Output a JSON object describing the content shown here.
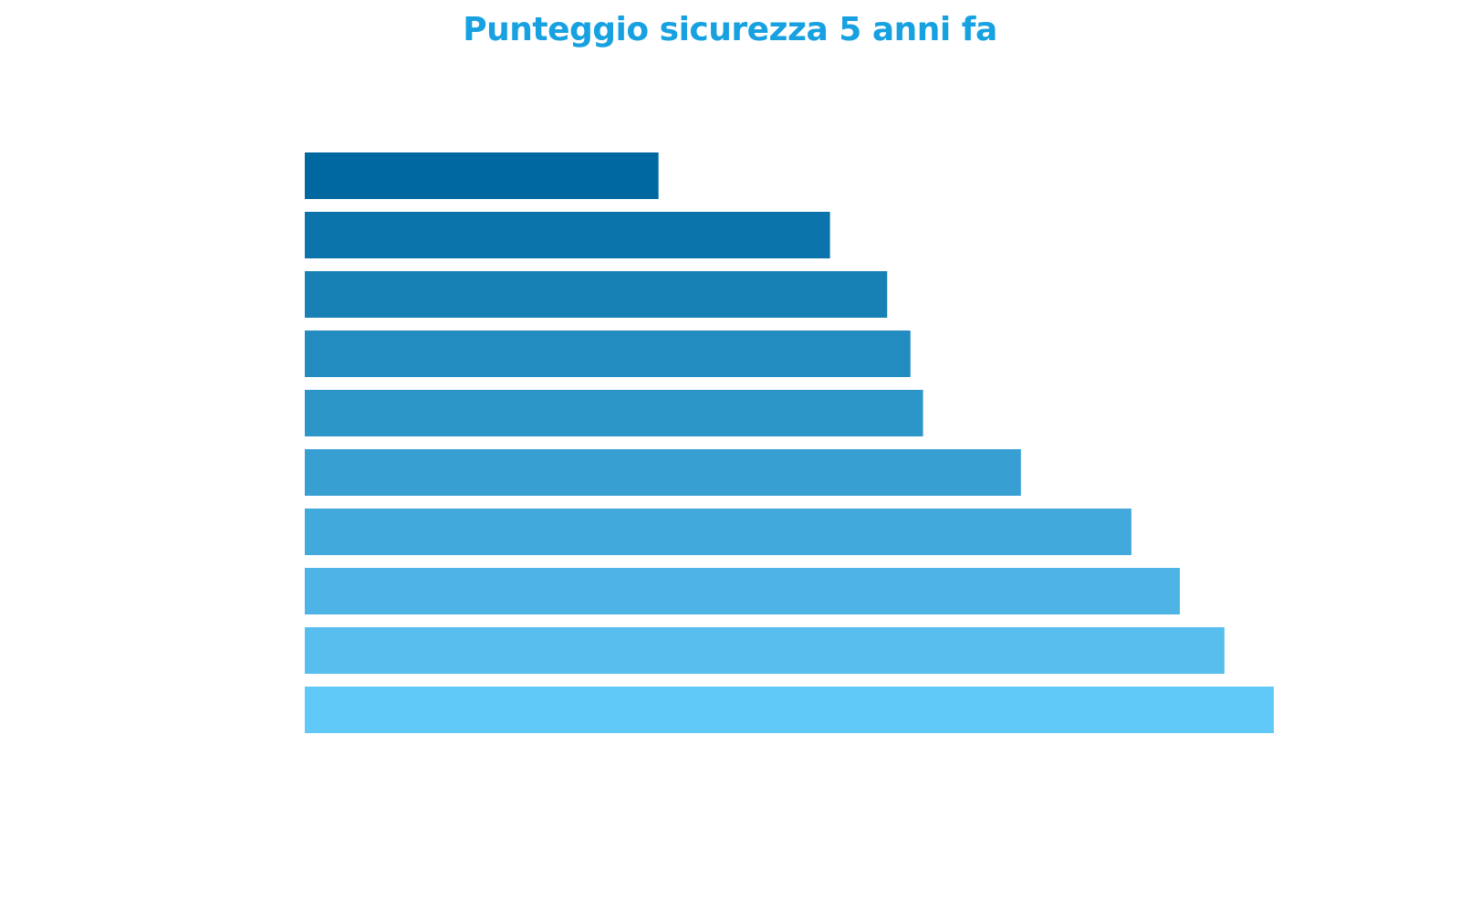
{
  "chart_data": {
    "type": "bar",
    "orientation": "horizontal",
    "title": "Punteggio sicurezza 5 anni fa",
    "xlabel": "",
    "ylabel": "",
    "values": [
      36.5,
      54.2,
      60.1,
      62.5,
      63.8,
      73.9,
      85.3,
      90.3,
      94.9,
      100
    ],
    "xlim": [
      0,
      100
    ],
    "grid": false,
    "legend": "none",
    "colors": [
      "#0068a0",
      "#0b74aa",
      "#1780b4",
      "#228bbf",
      "#2d96c9",
      "#389fd3",
      "#42a9dc",
      "#4db4e5",
      "#57beee",
      "#61c9f8"
    ]
  }
}
